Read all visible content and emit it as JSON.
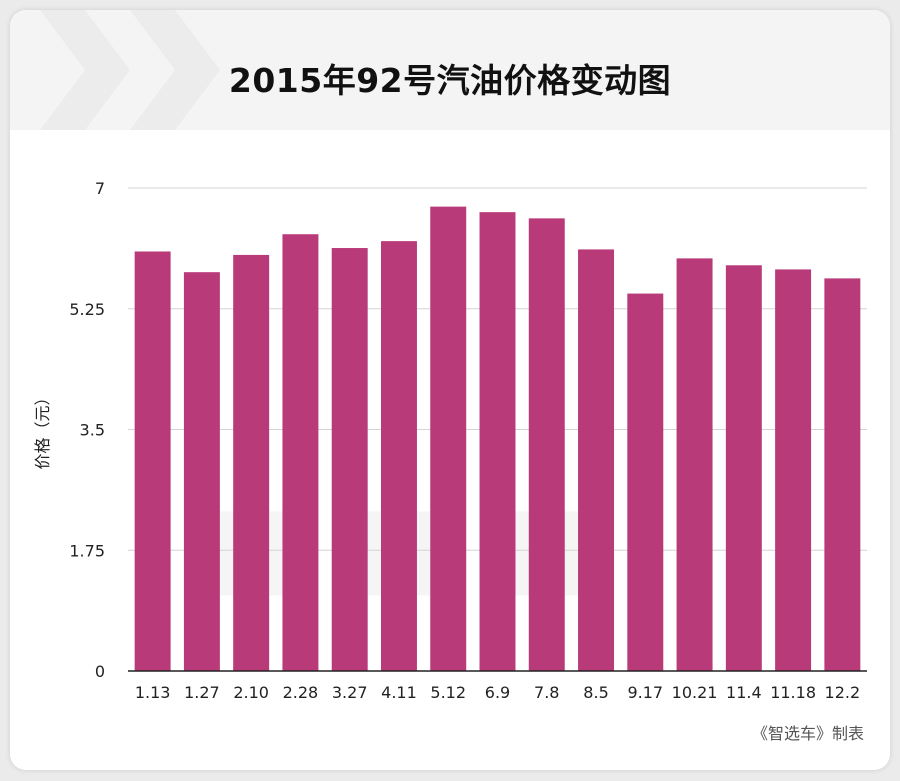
{
  "colors": {
    "bar": "#b93a78",
    "grid": "#d4d4d4",
    "axis": "#222222",
    "text": "#222222"
  },
  "footer": "《智选车》制表",
  "chart_data": {
    "type": "bar",
    "title": "2015年92号汽油价格变动图",
    "ylabel": "价格（元）",
    "xlabel": "",
    "ylim": [
      0,
      7
    ],
    "yticks": [
      0,
      1.75,
      3.5,
      5.25,
      7
    ],
    "ytick_labels": [
      "0",
      "1.75",
      "3.5",
      "5.25",
      "7"
    ],
    "grid": true,
    "categories": [
      "1.13",
      "1.27",
      "2.10",
      "2.28",
      "3.27",
      "4.11",
      "5.12",
      "6.9",
      "7.8",
      "8.5",
      "9.17",
      "10.21",
      "11.4",
      "11.18",
      "12.2"
    ],
    "values": [
      6.08,
      5.78,
      6.03,
      6.33,
      6.13,
      6.23,
      6.73,
      6.65,
      6.56,
      6.11,
      5.47,
      5.98,
      5.88,
      5.82,
      5.69
    ]
  }
}
